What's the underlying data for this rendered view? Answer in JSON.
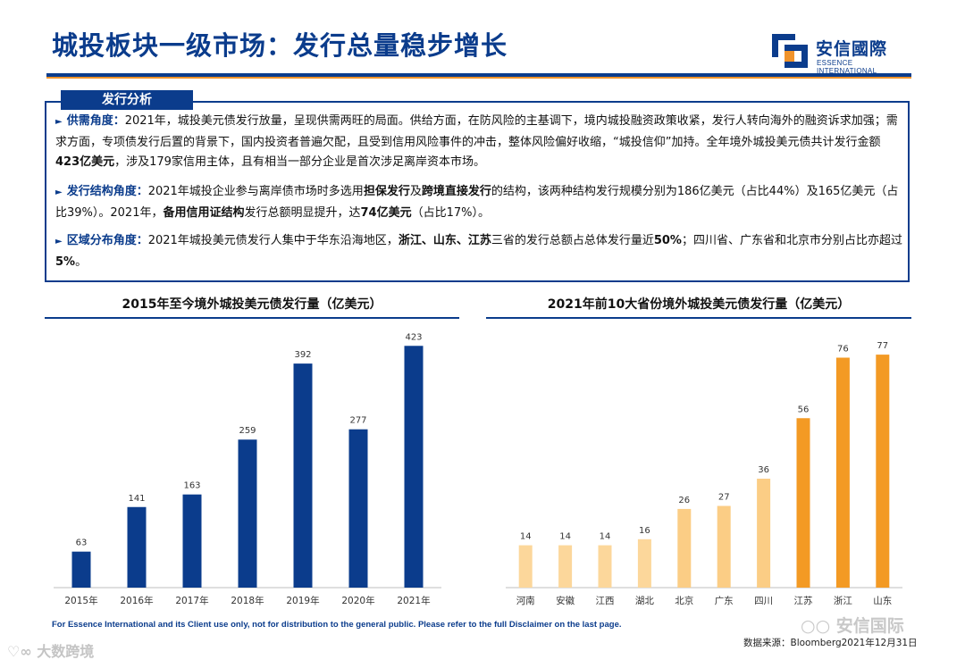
{
  "header": {
    "title": "城投板块一级市场：发行总量稳步增长",
    "logo_cn": "安信國際",
    "logo_en": "ESSENCE INTERNATIONAL"
  },
  "analysis": {
    "tab_label": "发行分析",
    "p1": {
      "label": "供需角度：",
      "t1": "2021年，城投美元债发行放量，呈现供需两旺的局面。供给方面，在防风险的主基调下，境内城投融资政策收紧，发行人转向海外的融资诉求加强；需求方面，专项债发行后置的背景下，国内投资者普遍欠配，且受到信用风险事件的冲击，整体风险偏好收缩，“城投信仰”加持。全年境外城投美元债共计发行金额",
      "b1": "423亿美元",
      "t2": "，涉及179家信用主体，且有相当一部分企业是首次涉足离岸资本市场。"
    },
    "p2": {
      "label": "发行结构角度：",
      "t1": "2021年城投企业参与离岸债市场时多选用",
      "b1": "担保发行",
      "t2": "及",
      "b2": "跨境直接发行",
      "t3": "的结构，该两种结构发行规模分别为186亿美元（占比44%）及165亿美元（占比39%）。2021年，",
      "b3": "备用信用证结构",
      "t4": "发行总额明显提升，达",
      "b4": "74亿美元",
      "t5": "（占比17%）。"
    },
    "p3": {
      "label": "区域分布角度：",
      "t1": "2021年城投美元债发行人集中于华东沿海地区，",
      "b1": "浙江、山东、江苏",
      "t2": "三省的发行总额占总体发行量近",
      "b2": "50%",
      "t3": "；四川省、广东省和北京市分别占比亦超过",
      "b3": "5%",
      "t4": "。"
    }
  },
  "chart_data": [
    {
      "type": "bar",
      "title": "2015年至今境外城投美元债发行量（亿美元）",
      "categories": [
        "2015年",
        "2016年",
        "2017年",
        "2018年",
        "2019年",
        "2020年",
        "2021年"
      ],
      "values": [
        63,
        141,
        163,
        259,
        392,
        277,
        423
      ],
      "ylim": [
        0,
        450
      ],
      "colors": [
        "#0b3c8c"
      ]
    },
    {
      "type": "bar",
      "title": "2021年前10大省份境外城投美元债发行量（亿美元）",
      "categories": [
        "河南",
        "安徽",
        "江西",
        "湖北",
        "北京",
        "广东",
        "四川",
        "江苏",
        "浙江",
        "山东"
      ],
      "values": [
        14,
        14,
        14,
        16,
        26,
        27,
        36,
        56,
        76,
        77
      ],
      "ylim": [
        0,
        85
      ],
      "colors": [
        "#fcd79b",
        "#fcd79b",
        "#fcd79b",
        "#fcd79b",
        "#fbcd85",
        "#fbcd85",
        "#fbcd85",
        "#f39a24",
        "#f39a24",
        "#f39a24"
      ]
    }
  ],
  "footer": {
    "disclaimer": "For Essence International and its Client use only, not for distribution to the general public. Please refer to the full Disclaimer on the last page.",
    "source": "数据来源：Bloomberg2021年12月31日",
    "watermark_left": "大数跨境",
    "watermark_right": "安信国际"
  },
  "colors": {
    "brand_blue": "#0b3c8c",
    "accent_orange": "#f0932b"
  }
}
